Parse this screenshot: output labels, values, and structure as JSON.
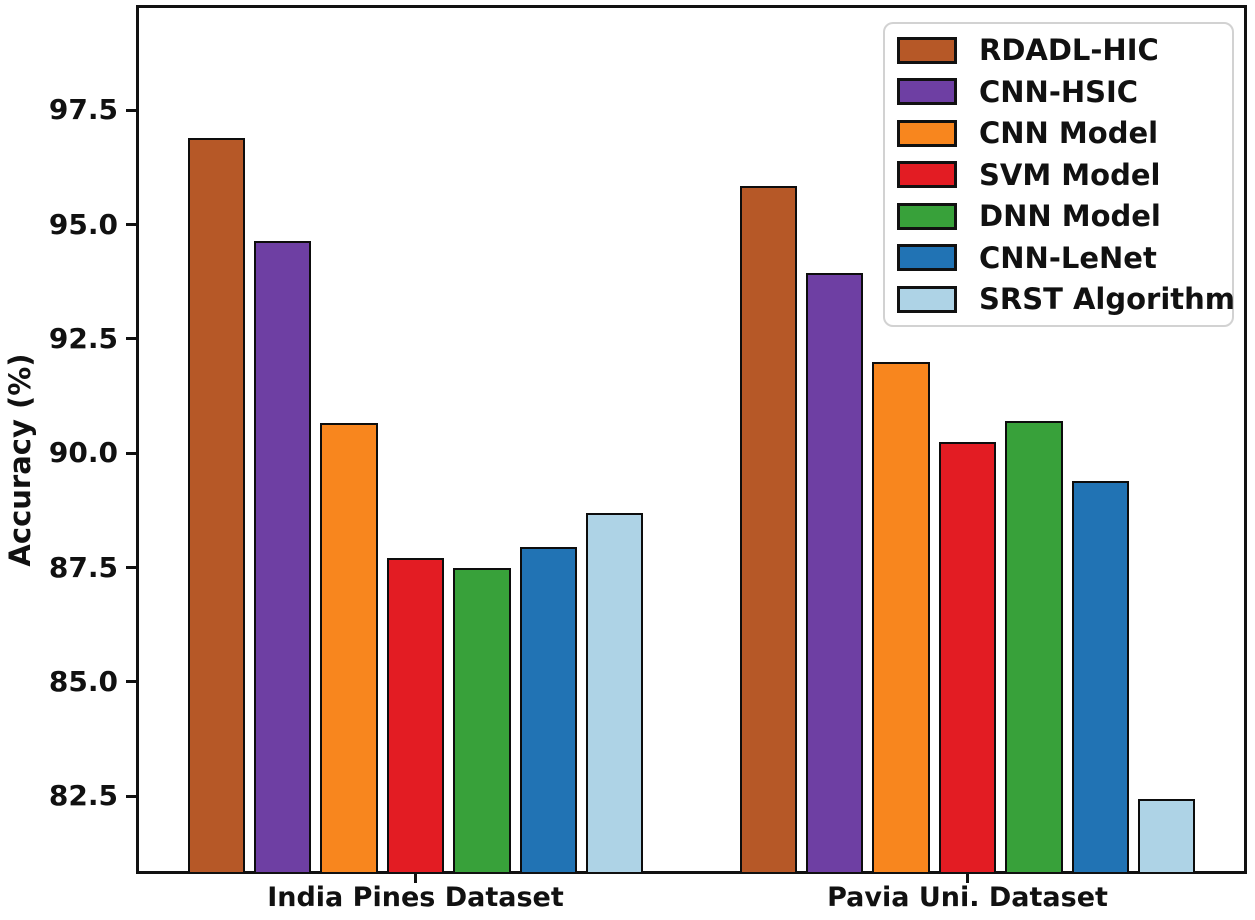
{
  "figure": {
    "background": "#ffffff",
    "frame_color": "#111111",
    "bar_edge_color": "#0d0d0d"
  },
  "chart_data": {
    "type": "bar",
    "title": "",
    "xlabel": "",
    "ylabel": "Accuracy (%)",
    "categories": [
      "India Pines Dataset",
      "Pavia Uni. Dataset"
    ],
    "series": [
      {
        "name": "RDADL-HIC",
        "color": "#b65827",
        "values": [
          96.9,
          95.85
        ]
      },
      {
        "name": "CNN-HSIC",
        "color": "#6e3fa3",
        "values": [
          94.65,
          93.95
        ]
      },
      {
        "name": "CNN Model",
        "color": "#f8861e",
        "values": [
          90.65,
          92.0
        ]
      },
      {
        "name": "SVM Model",
        "color": "#e31c23",
        "values": [
          87.7,
          90.25
        ]
      },
      {
        "name": "DNN Model",
        "color": "#38a13a",
        "values": [
          87.5,
          90.7
        ]
      },
      {
        "name": "CNN-LeNet",
        "color": "#2173b4",
        "values": [
          87.95,
          89.4
        ]
      },
      {
        "name": "SRST Algorithm",
        "color": "#aed3e6",
        "values": [
          88.7,
          82.45
        ]
      }
    ],
    "y_ticks": [
      82.5,
      85.0,
      87.5,
      90.0,
      92.5,
      95.0,
      97.5
    ],
    "y_tick_labels": [
      "82.5",
      "85.0",
      "87.5",
      "90.0",
      "92.5",
      "95.0",
      "97.5"
    ],
    "ylim": [
      80.8,
      99.8
    ],
    "grid": false,
    "legend_position": "upper right"
  }
}
